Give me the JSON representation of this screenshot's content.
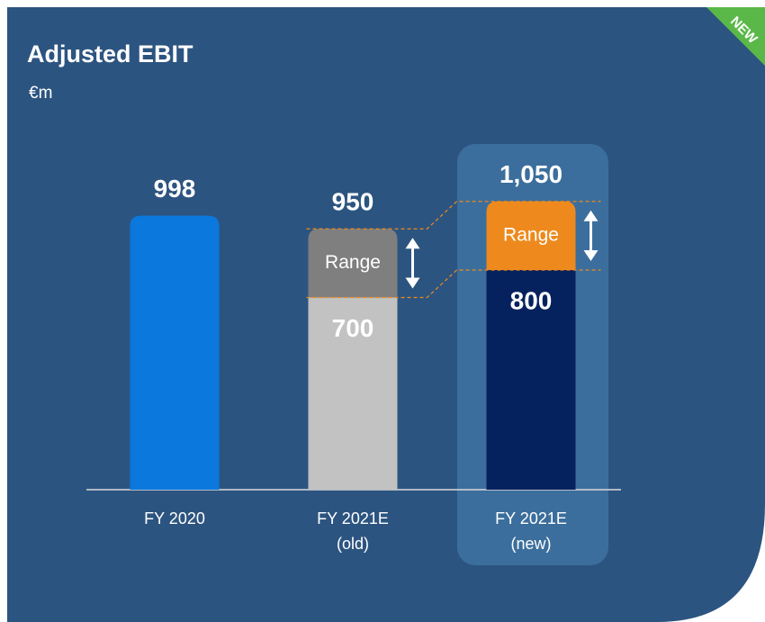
{
  "chart_data": {
    "type": "bar",
    "title": "Adjusted EBIT",
    "subtitle": "€m",
    "badge": "NEW",
    "categories": [
      "FY 2020",
      "FY 2021E\n(old)",
      "FY 2021E\n(new)"
    ],
    "values": [
      998,
      700,
      800
    ],
    "colors": [
      "#0a78dc",
      "#c2c2c2",
      "#06225e"
    ],
    "range": {
      "name": "Range",
      "values": [
        null,
        950,
        1050
      ],
      "value_labels": [
        null,
        "950",
        "1,050"
      ],
      "colors": [
        null,
        "#7f7f7f",
        "#ee8a1d"
      ]
    },
    "highlight": 2,
    "ylim": [
      0,
      1200
    ]
  }
}
